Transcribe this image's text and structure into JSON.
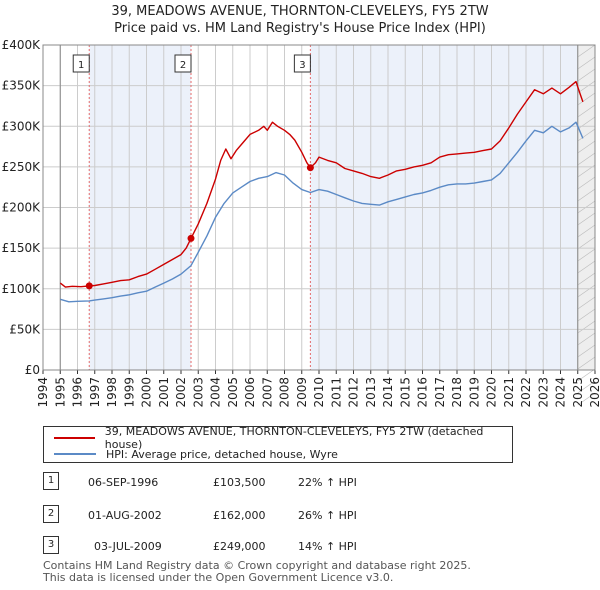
{
  "title_line1": "39, MEADOWS AVENUE, THORNTON-CLEVELEYS, FY5 2TW",
  "title_line2": "Price paid vs. HM Land Registry's House Price Index (HPI)",
  "colors": {
    "property": "#cc0000",
    "hpi": "#5b8ac6",
    "shade": "#dde6f5",
    "vline": "#e46a6a"
  },
  "legend": {
    "property": "39, MEADOWS AVENUE, THORNTON-CLEVELEYS, FY5 2TW (detached house)",
    "hpi": "HPI: Average price, detached house, Wyre"
  },
  "sales": [
    {
      "num": "1",
      "date": "06-SEP-1996",
      "price": "£103,500",
      "hpi": "22% ↑ HPI"
    },
    {
      "num": "2",
      "date": "01-AUG-2002",
      "price": "£162,000",
      "hpi": "26% ↑ HPI"
    },
    {
      "num": "3",
      "date": "03-JUL-2009",
      "price": "£249,000",
      "hpi": "14% ↑ HPI"
    }
  ],
  "footer_line1": "Contains HM Land Registry data © Crown copyright and database right 2025.",
  "footer_line2": "This data is licensed under the Open Government Licence v3.0.",
  "chart_data": {
    "type": "line",
    "xlim": [
      1994,
      2026
    ],
    "ylim": [
      0,
      400000
    ],
    "yticks": [
      {
        "v": 0,
        "label": "£0"
      },
      {
        "v": 50000,
        "label": "£50K"
      },
      {
        "v": 100000,
        "label": "£100K"
      },
      {
        "v": 150000,
        "label": "£150K"
      },
      {
        "v": 200000,
        "label": "£200K"
      },
      {
        "v": 250000,
        "label": "£250K"
      },
      {
        "v": 300000,
        "label": "£300K"
      },
      {
        "v": 350000,
        "label": "£350K"
      },
      {
        "v": 400000,
        "label": "£400K"
      }
    ],
    "xticks": [
      "1994",
      "1995",
      "1996",
      "1997",
      "1998",
      "1999",
      "2000",
      "2001",
      "2002",
      "2003",
      "2004",
      "2005",
      "2006",
      "2007",
      "2008",
      "2009",
      "2010",
      "2011",
      "2012",
      "2013",
      "2014",
      "2015",
      "2016",
      "2017",
      "2018",
      "2019",
      "2020",
      "2021",
      "2022",
      "2023",
      "2024",
      "2025",
      "2026"
    ],
    "data_start": 1995.0,
    "data_end": 2025.3,
    "shaded_future_from": 2025.0,
    "sale_markers": [
      {
        "label": "1",
        "x": 1996.68,
        "y": 103500
      },
      {
        "label": "2",
        "x": 2002.58,
        "y": 162000
      },
      {
        "label": "3",
        "x": 2009.5,
        "y": 249000
      }
    ],
    "series": [
      {
        "name": "39, MEADOWS AVENUE, THORNTON-CLEVELEYS, FY5 2TW (detached house)",
        "key": "property",
        "points": [
          [
            1995.0,
            107000
          ],
          [
            1995.3,
            102000
          ],
          [
            1995.7,
            103000
          ],
          [
            1996.2,
            102500
          ],
          [
            1996.68,
            103500
          ],
          [
            1997.0,
            104000
          ],
          [
            1997.5,
            106000
          ],
          [
            1998.0,
            108000
          ],
          [
            1998.5,
            110000
          ],
          [
            1999.0,
            111000
          ],
          [
            1999.5,
            115000
          ],
          [
            2000.0,
            118000
          ],
          [
            2000.5,
            124000
          ],
          [
            2001.0,
            130000
          ],
          [
            2001.5,
            136000
          ],
          [
            2002.0,
            142000
          ],
          [
            2002.3,
            150000
          ],
          [
            2002.58,
            162000
          ],
          [
            2003.0,
            180000
          ],
          [
            2003.5,
            205000
          ],
          [
            2004.0,
            235000
          ],
          [
            2004.3,
            258000
          ],
          [
            2004.6,
            272000
          ],
          [
            2004.9,
            260000
          ],
          [
            2005.2,
            270000
          ],
          [
            2005.6,
            280000
          ],
          [
            2006.0,
            290000
          ],
          [
            2006.5,
            295000
          ],
          [
            2006.8,
            300000
          ],
          [
            2007.0,
            295000
          ],
          [
            2007.3,
            305000
          ],
          [
            2007.6,
            300000
          ],
          [
            2008.0,
            295000
          ],
          [
            2008.3,
            290000
          ],
          [
            2008.6,
            283000
          ],
          [
            2009.0,
            268000
          ],
          [
            2009.3,
            255000
          ],
          [
            2009.5,
            249000
          ],
          [
            2009.8,
            255000
          ],
          [
            2010.0,
            262000
          ],
          [
            2010.5,
            258000
          ],
          [
            2011.0,
            255000
          ],
          [
            2011.5,
            248000
          ],
          [
            2012.0,
            245000
          ],
          [
            2012.5,
            242000
          ],
          [
            2013.0,
            238000
          ],
          [
            2013.5,
            236000
          ],
          [
            2014.0,
            240000
          ],
          [
            2014.5,
            245000
          ],
          [
            2015.0,
            247000
          ],
          [
            2015.5,
            250000
          ],
          [
            2016.0,
            252000
          ],
          [
            2016.5,
            255000
          ],
          [
            2017.0,
            262000
          ],
          [
            2017.5,
            265000
          ],
          [
            2018.0,
            266000
          ],
          [
            2018.5,
            267000
          ],
          [
            2019.0,
            268000
          ],
          [
            2019.5,
            270000
          ],
          [
            2020.0,
            272000
          ],
          [
            2020.5,
            282000
          ],
          [
            2021.0,
            298000
          ],
          [
            2021.5,
            315000
          ],
          [
            2022.0,
            330000
          ],
          [
            2022.5,
            345000
          ],
          [
            2023.0,
            340000
          ],
          [
            2023.5,
            347000
          ],
          [
            2024.0,
            340000
          ],
          [
            2024.5,
            348000
          ],
          [
            2024.9,
            355000
          ],
          [
            2025.1,
            342000
          ],
          [
            2025.3,
            330000
          ]
        ]
      },
      {
        "name": "HPI: Average price, detached house, Wyre",
        "key": "hpi",
        "points": [
          [
            1995.0,
            87000
          ],
          [
            1995.5,
            84000
          ],
          [
            1996.0,
            84500
          ],
          [
            1996.68,
            85000
          ],
          [
            1997.0,
            86000
          ],
          [
            1997.5,
            87500
          ],
          [
            1998.0,
            89000
          ],
          [
            1998.5,
            91000
          ],
          [
            1999.0,
            92500
          ],
          [
            1999.5,
            95000
          ],
          [
            2000.0,
            97000
          ],
          [
            2000.5,
            102000
          ],
          [
            2001.0,
            107000
          ],
          [
            2001.5,
            112000
          ],
          [
            2002.0,
            118000
          ],
          [
            2002.58,
            128500
          ],
          [
            2003.0,
            145000
          ],
          [
            2003.5,
            165000
          ],
          [
            2004.0,
            188000
          ],
          [
            2004.5,
            205000
          ],
          [
            2005.0,
            218000
          ],
          [
            2005.5,
            225000
          ],
          [
            2006.0,
            232000
          ],
          [
            2006.5,
            236000
          ],
          [
            2007.0,
            238000
          ],
          [
            2007.5,
            243000
          ],
          [
            2008.0,
            240000
          ],
          [
            2008.5,
            230000
          ],
          [
            2009.0,
            222000
          ],
          [
            2009.5,
            218500
          ],
          [
            2010.0,
            222000
          ],
          [
            2010.5,
            220000
          ],
          [
            2011.0,
            216000
          ],
          [
            2011.5,
            212000
          ],
          [
            2012.0,
            208000
          ],
          [
            2012.5,
            205000
          ],
          [
            2013.0,
            204000
          ],
          [
            2013.5,
            203000
          ],
          [
            2014.0,
            207000
          ],
          [
            2014.5,
            210000
          ],
          [
            2015.0,
            213000
          ],
          [
            2015.5,
            216000
          ],
          [
            2016.0,
            218000
          ],
          [
            2016.5,
            221000
          ],
          [
            2017.0,
            225000
          ],
          [
            2017.5,
            228000
          ],
          [
            2018.0,
            229000
          ],
          [
            2018.5,
            229000
          ],
          [
            2019.0,
            230000
          ],
          [
            2019.5,
            232000
          ],
          [
            2020.0,
            234000
          ],
          [
            2020.5,
            242000
          ],
          [
            2021.0,
            255000
          ],
          [
            2021.5,
            268000
          ],
          [
            2022.0,
            282000
          ],
          [
            2022.5,
            295000
          ],
          [
            2023.0,
            292000
          ],
          [
            2023.5,
            300000
          ],
          [
            2024.0,
            293000
          ],
          [
            2024.5,
            298000
          ],
          [
            2024.9,
            305000
          ],
          [
            2025.1,
            295000
          ],
          [
            2025.3,
            285000
          ]
        ]
      }
    ]
  }
}
